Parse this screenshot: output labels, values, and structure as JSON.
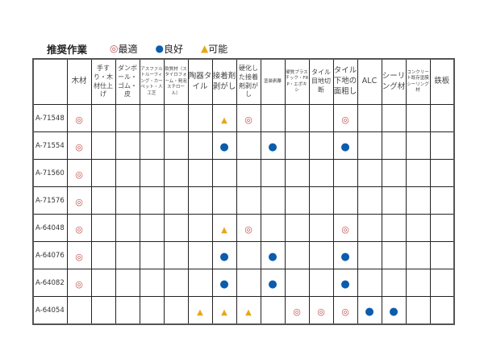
{
  "legend": {
    "title": "推奨作業",
    "items": [
      {
        "symbol": "◎",
        "label": "最適",
        "color": "#c0504d"
      },
      {
        "symbol": "●",
        "label": "良好",
        "color": "#0b5cad"
      },
      {
        "symbol": "▲",
        "label": "可能",
        "color": "#e6a817"
      }
    ]
  },
  "table": {
    "columns": [
      "木材",
      "手すり・木材仕上げ",
      "ダンボール・ゴム・皮",
      "アスファルトルーフィング・カーペット・人工芝",
      "軟質材（スタイロフォーム・発泡スチロール）",
      "陶器タイル",
      "接着剤剥がし",
      "硬化した接着剤剥がし",
      "塗装剥離",
      "硬質プラスチック・FRP・エポキシ",
      "タイル目地切断",
      "タイル下地の面粗し",
      "ALC",
      "シーリング材",
      "コンクリート既存塗膜シーリング材",
      "鉄板"
    ],
    "rows": [
      {
        "model": "A-71548",
        "marks": [
          "◎",
          "",
          "",
          "",
          "",
          "",
          "▲",
          "◎",
          "",
          "",
          "",
          "◎",
          "",
          "",
          "",
          ""
        ]
      },
      {
        "model": "A-71554",
        "marks": [
          "◎",
          "",
          "",
          "",
          "",
          "",
          "●",
          "",
          "●",
          "",
          "",
          "●",
          "",
          "",
          "",
          ""
        ]
      },
      {
        "model": "A-71560",
        "marks": [
          "◎",
          "",
          "",
          "",
          "",
          "",
          "",
          "",
          "",
          "",
          "",
          "",
          "",
          "",
          "",
          ""
        ]
      },
      {
        "model": "A-71576",
        "marks": [
          "◎",
          "",
          "",
          "",
          "",
          "",
          "",
          "",
          "",
          "",
          "",
          "",
          "",
          "",
          "",
          ""
        ]
      },
      {
        "model": "A-64048",
        "marks": [
          "◎",
          "",
          "",
          "",
          "",
          "",
          "▲",
          "◎",
          "",
          "",
          "",
          "◎",
          "",
          "",
          "",
          ""
        ]
      },
      {
        "model": "A-64076",
        "marks": [
          "◎",
          "",
          "",
          "",
          "",
          "",
          "●",
          "",
          "●",
          "",
          "",
          "●",
          "",
          "",
          "",
          ""
        ]
      },
      {
        "model": "A-64082",
        "marks": [
          "◎",
          "",
          "",
          "",
          "",
          "",
          "●",
          "",
          "●",
          "",
          "",
          "●",
          "",
          "",
          "",
          ""
        ]
      },
      {
        "model": "A-64054",
        "marks": [
          "",
          "",
          "",
          "",
          "",
          "▲",
          "▲",
          "▲",
          "",
          "◎",
          "◎",
          "◎",
          "●",
          "●",
          "",
          ""
        ]
      }
    ]
  }
}
